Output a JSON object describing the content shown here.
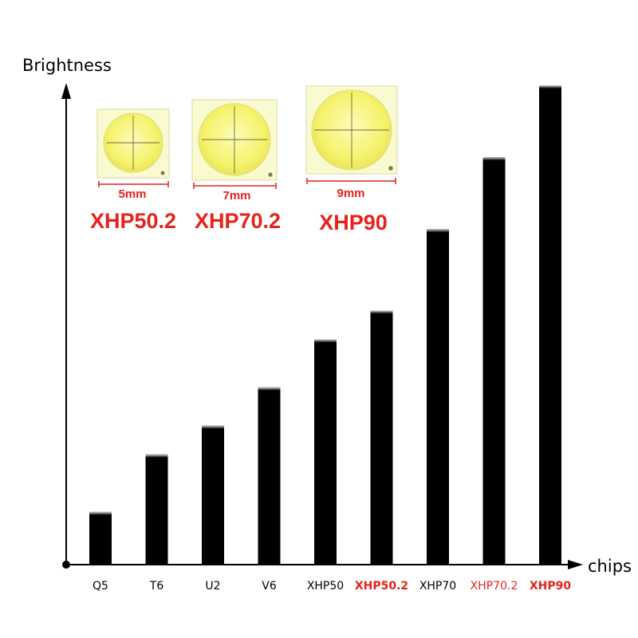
{
  "chart_data": {
    "type": "bar",
    "xlabel": "chips",
    "ylabel": "Brightness",
    "categories": [
      "Q5",
      "T6",
      "U2",
      "V6",
      "XHP50",
      "XHP50.2",
      "XHP70",
      "XHP70.2",
      "XHP90"
    ],
    "values": [
      11,
      23,
      29,
      37,
      47,
      53,
      70,
      85,
      100
    ],
    "ylim": [
      0,
      100
    ],
    "grid": false,
    "bar_color": "#000000",
    "highlight_color": "#e5231b",
    "highlighted": [
      "XHP50.2",
      "XHP70.2",
      "XHP90"
    ]
  },
  "chips": [
    {
      "name": "XHP50.2",
      "size": "5mm"
    },
    {
      "name": "XHP70.2",
      "size": "7mm"
    },
    {
      "name": "XHP90",
      "size": "9mm"
    }
  ],
  "colors": {
    "led_yellow": "#f7f47a",
    "led_frame": "#fafad0",
    "accent_red": "#e5231b"
  }
}
